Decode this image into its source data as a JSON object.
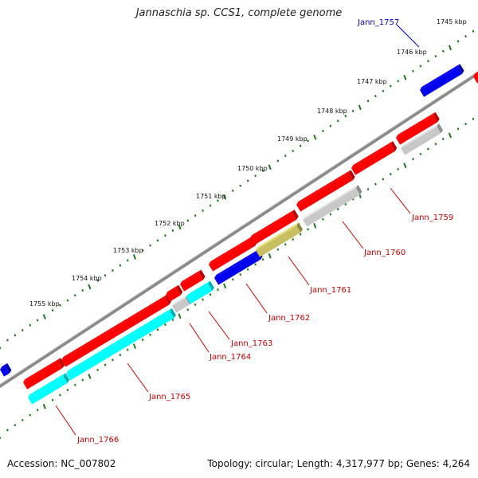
{
  "title": "Jannaschia sp. CCS1, complete genome",
  "footer": {
    "accession": "Accession: NC_007802",
    "summary": "Topology: circular; Length: 4,317,977 bp; Genes: 4,264"
  },
  "colors": {
    "backbone": "#8a8a8a",
    "tick": "#1a7a1a",
    "red": "#ff0000",
    "blue": "#0000ee",
    "cyan": "#00ffff",
    "gray": "#c8c8c8",
    "olive": "#c8c060",
    "label_red": "#cc0000",
    "label_blue": "#0000cc"
  },
  "scale_labels": [
    "1745 kbp",
    "1746 kbp",
    "1747 kbp",
    "1748 kbp",
    "1749 kbp",
    "1750 kbp",
    "1751 kbp",
    "1752 kbp",
    "1753 kbp",
    "1754 kbp",
    "1755 kbp"
  ],
  "gene_labels": [
    "Jann_1757",
    "Jann_1759",
    "Jann_1760",
    "Jann_1761",
    "Jann_1762",
    "Jann_1763",
    "Jann_1764",
    "Jann_1765",
    "Jann_1766"
  ]
}
